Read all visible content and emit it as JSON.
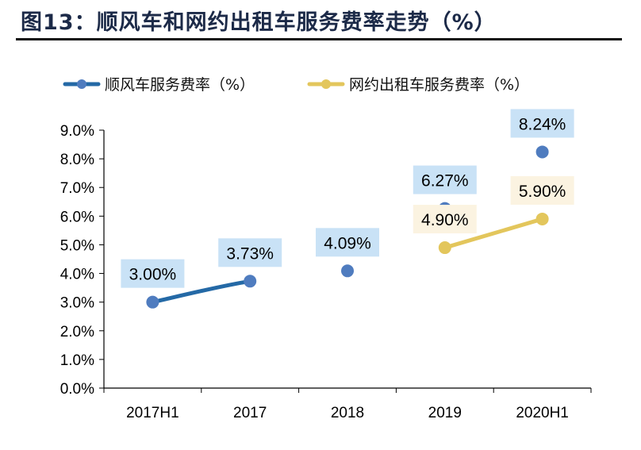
{
  "title": "图13：顺风车和网约出租车服务费率走势（%）",
  "chart_data": {
    "type": "line",
    "title": "图13：顺风车和网约出租车服务费率走势（%）",
    "categories": [
      "2017H1",
      "2017",
      "2018",
      "2019",
      "2020H1"
    ],
    "ylim": [
      0,
      9
    ],
    "yticks": [
      "0.0%",
      "1.0%",
      "2.0%",
      "3.0%",
      "4.0%",
      "5.0%",
      "6.0%",
      "7.0%",
      "8.0%",
      "9.0%"
    ],
    "legend_position": "top",
    "grid": false,
    "series": [
      {
        "name": "顺风车服务费率（%）",
        "values": [
          3.0,
          3.73,
          4.09,
          6.27,
          8.24
        ],
        "labels": [
          "3.00%",
          "3.73%",
          "4.09%",
          "6.27%",
          "8.24%"
        ],
        "color": "#2469a6",
        "marker_color": "#4f7cbf",
        "label_bg": "#c9e2f6"
      },
      {
        "name": "网约出租车服务费率（%）",
        "values": [
          null,
          null,
          null,
          4.9,
          5.9
        ],
        "labels": [
          null,
          null,
          null,
          "4.90%",
          "5.90%"
        ],
        "color": "#e3c65c",
        "marker_color": "#e3c65c",
        "label_bg": "#fbf3e1"
      }
    ]
  }
}
